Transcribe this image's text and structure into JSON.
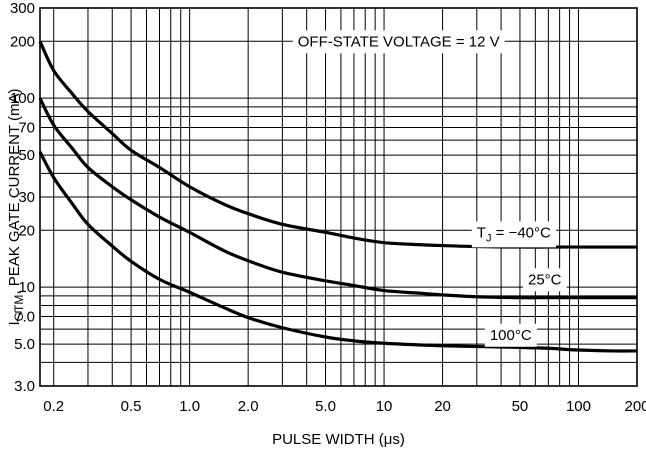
{
  "chart_data": {
    "type": "line",
    "title": "",
    "xlabel": "PULSE WIDTH (μs)",
    "ylabel_main": "I",
    "ylabel_sub": "GTM",
    "ylabel_rest": ", PEAK GATE CURRENT (mA)",
    "x_scale": "log",
    "y_scale": "log",
    "xlim": [
      0.17,
      200
    ],
    "ylim": [
      3,
      300
    ],
    "grid": true,
    "x_ticks": [
      {
        "value": 0.2,
        "label": "0.2"
      },
      {
        "value": 0.5,
        "label": "0.5"
      },
      {
        "value": 1,
        "label": "1.0"
      },
      {
        "value": 2,
        "label": "2.0"
      },
      {
        "value": 5,
        "label": "5.0"
      },
      {
        "value": 10,
        "label": "10"
      },
      {
        "value": 20,
        "label": "20"
      },
      {
        "value": 50,
        "label": "50"
      },
      {
        "value": 100,
        "label": "100"
      },
      {
        "value": 200,
        "label": "200"
      }
    ],
    "y_ticks": [
      {
        "value": 3,
        "label": "3.0"
      },
      {
        "value": 5,
        "label": "5.0"
      },
      {
        "value": 7,
        "label": "7.0"
      },
      {
        "value": 10,
        "label": "10"
      },
      {
        "value": 20,
        "label": "20"
      },
      {
        "value": 30,
        "label": "30"
      },
      {
        "value": 50,
        "label": "50"
      },
      {
        "value": 70,
        "label": "70"
      },
      {
        "value": 100,
        "label": "100"
      },
      {
        "value": 200,
        "label": "200"
      },
      {
        "value": 300,
        "label": "300"
      }
    ],
    "x_grid_values": [
      0.2,
      0.3,
      0.4,
      0.5,
      0.6,
      0.7,
      0.8,
      0.9,
      1,
      2,
      3,
      4,
      5,
      6,
      7,
      8,
      9,
      10,
      20,
      30,
      40,
      50,
      60,
      70,
      80,
      90,
      100,
      200
    ],
    "y_grid_values": [
      3,
      4,
      5,
      6,
      7,
      8,
      9,
      10,
      20,
      30,
      40,
      50,
      60,
      70,
      80,
      90,
      100,
      200,
      300
    ],
    "annotations": [
      {
        "text": "OFF-STATE VOLTAGE = 12 V",
        "x": 3.6,
        "y": 200
      },
      {
        "text": "T",
        "sub": "J",
        "rest": " = −40°C",
        "x": 30,
        "y": 19.5
      },
      {
        "text": "25°C",
        "x": 55,
        "y": 11
      },
      {
        "text": "100°C",
        "x": 35,
        "y": 5.6
      }
    ],
    "series": [
      {
        "name": "T_J = −40°C",
        "x": [
          0.17,
          0.2,
          0.25,
          0.3,
          0.4,
          0.5,
          0.7,
          1,
          1.5,
          2,
          3,
          5,
          7,
          10,
          15,
          20,
          30,
          50,
          70,
          100,
          150,
          200
        ],
        "y": [
          200,
          140,
          105,
          85,
          65,
          53,
          43,
          34,
          27.5,
          24.5,
          21.5,
          19.5,
          18.2,
          17.2,
          16.8,
          16.6,
          16.4,
          16.3,
          16.3,
          16.3,
          16.3,
          16.3
        ]
      },
      {
        "name": "25°C",
        "x": [
          0.17,
          0.2,
          0.25,
          0.3,
          0.4,
          0.5,
          0.7,
          1,
          1.5,
          2,
          3,
          5,
          7,
          10,
          15,
          20,
          30,
          50,
          70,
          100,
          150,
          200
        ],
        "y": [
          100,
          72,
          54,
          43,
          34,
          29,
          23.5,
          19.5,
          15.6,
          13.8,
          12,
          10.8,
          10.2,
          9.6,
          9.3,
          9.1,
          8.9,
          8.8,
          8.8,
          8.8,
          8.8,
          8.8
        ]
      },
      {
        "name": "100°C",
        "x": [
          0.17,
          0.2,
          0.25,
          0.3,
          0.4,
          0.5,
          0.7,
          1,
          1.5,
          2,
          3,
          5,
          7,
          10,
          15,
          20,
          30,
          50,
          70,
          100,
          150,
          200
        ],
        "y": [
          52,
          38,
          27.5,
          21.5,
          16.5,
          13.7,
          11,
          9.4,
          7.8,
          6.9,
          6.1,
          5.45,
          5.2,
          5.05,
          4.95,
          4.9,
          4.85,
          4.8,
          4.75,
          4.65,
          4.6,
          4.6
        ]
      }
    ]
  }
}
